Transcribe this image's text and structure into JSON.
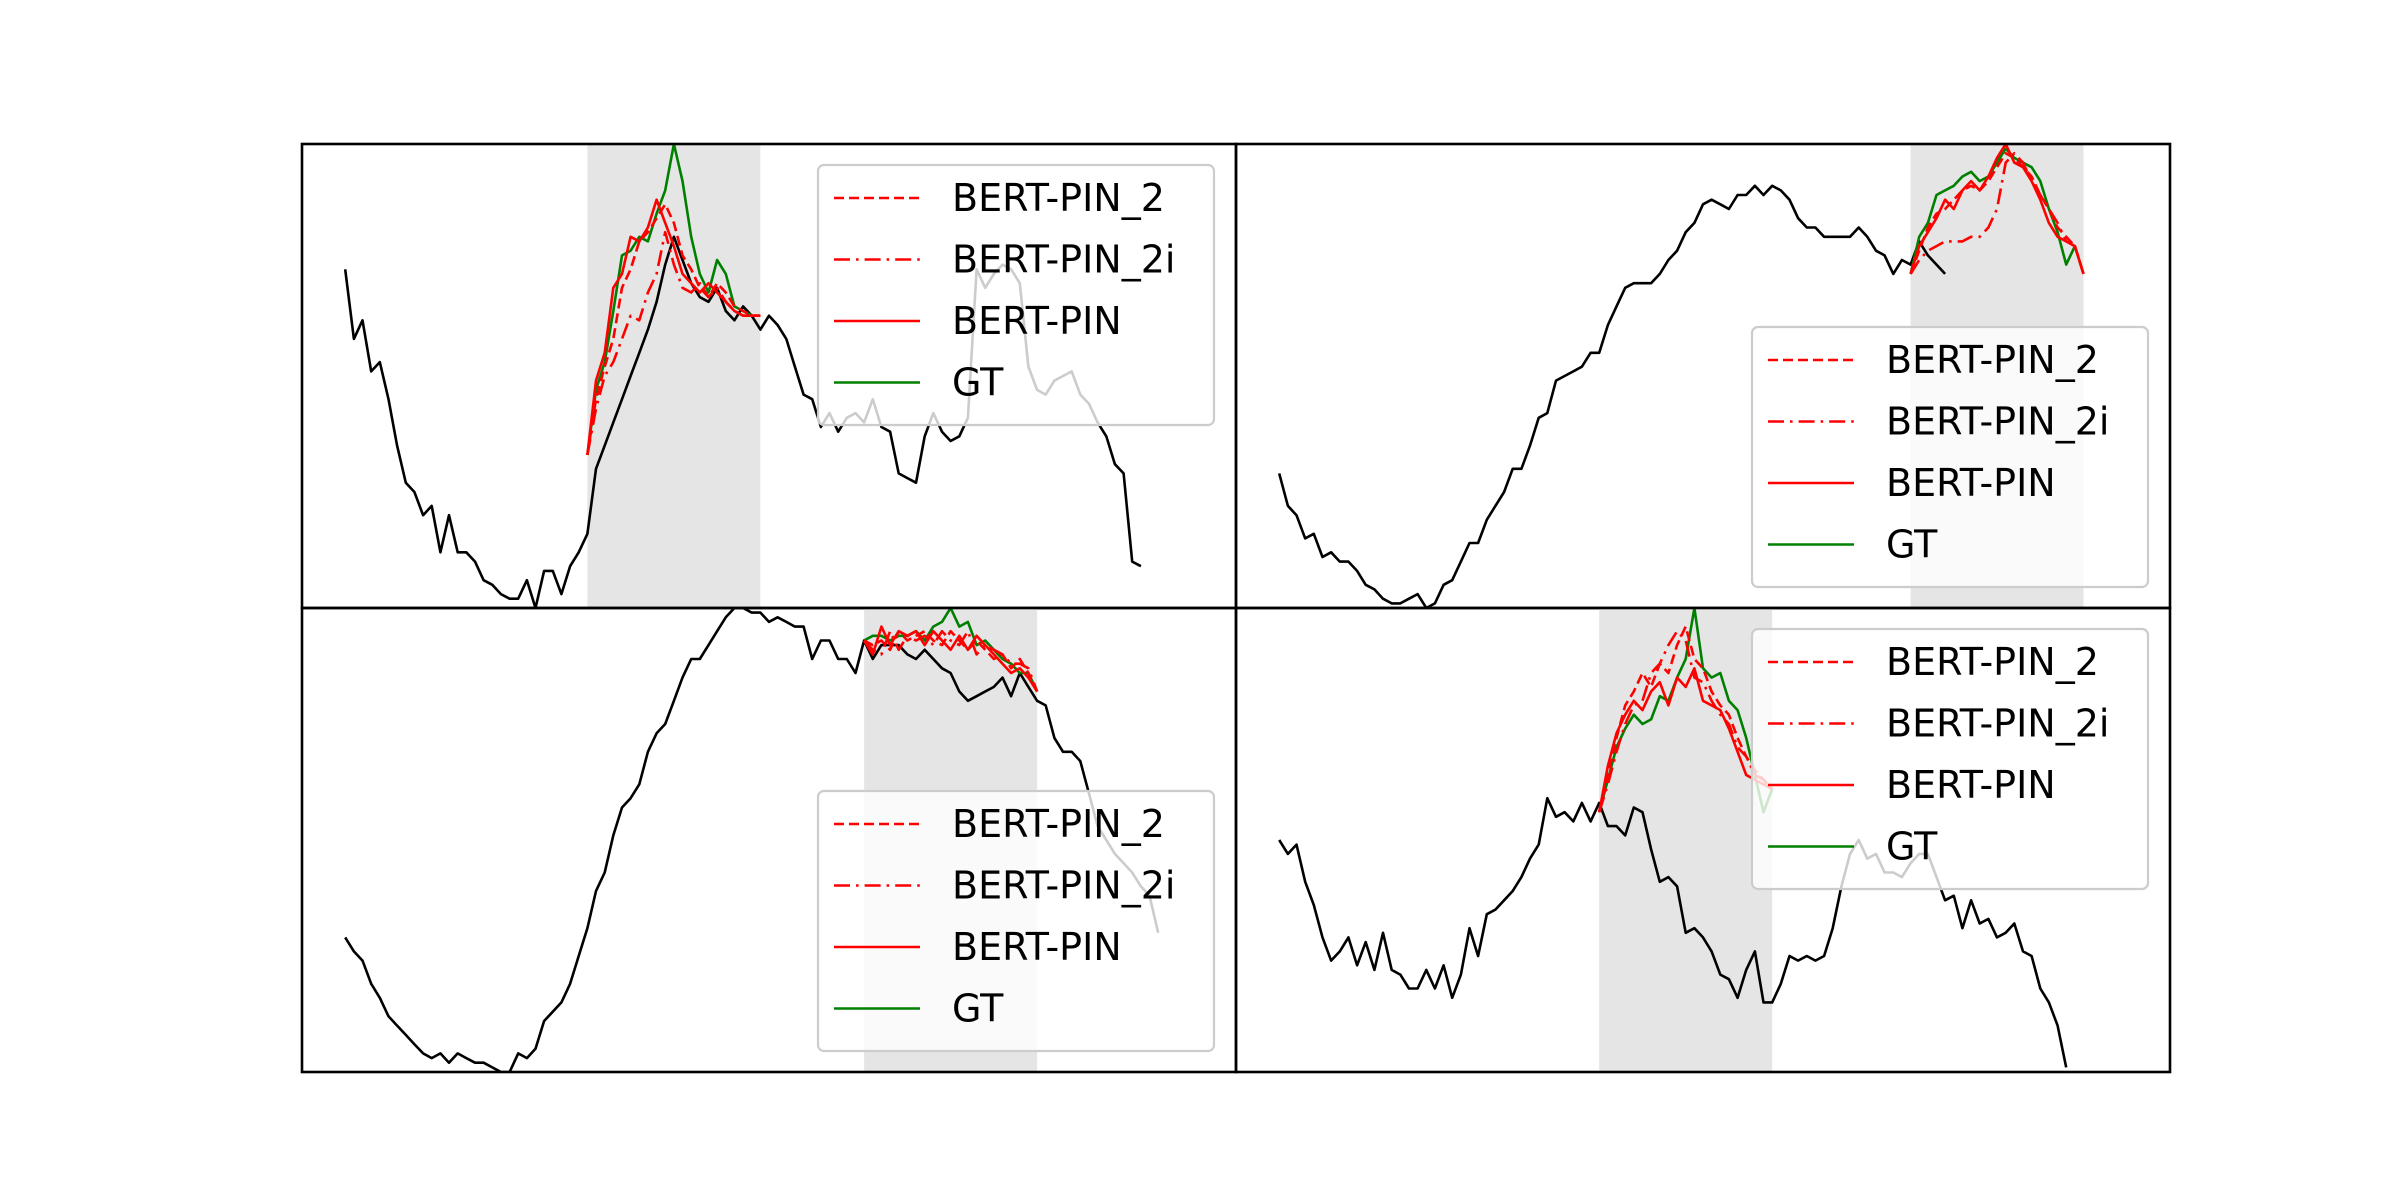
{
  "legend_labels": [
    "BERT-PIN_2",
    "BERT-PIN_2i",
    "BERT-PIN",
    "GT"
  ],
  "colors": {
    "prediction": "#ff0000",
    "ground_truth": "#008000",
    "context": "#000000",
    "masked_band": "#e5e5e5"
  },
  "chart_data": [
    {
      "type": "line",
      "panel": "top-left",
      "legend_position": "upper right",
      "x_range": [
        -2,
        106
      ],
      "y_range": [
        0,
        1
      ],
      "masked_region": [
        31,
        51
      ],
      "series": [
        {
          "name": "context",
          "x_start": 3,
          "values": [
            0.73,
            0.58,
            0.62,
            0.51,
            0.53,
            0.45,
            0.35,
            0.27,
            0.25,
            0.2,
            0.22,
            0.12,
            0.2,
            0.12,
            0.12,
            0.1,
            0.06,
            0.05,
            0.03,
            0.02,
            0.02,
            0.06,
            0.0,
            0.08,
            0.08,
            0.03,
            0.09,
            0.12,
            0.16,
            0.3,
            0.35,
            0.4,
            0.45,
            0.5,
            0.55,
            0.6,
            0.66,
            0.74,
            0.8,
            0.75,
            0.7,
            0.67,
            0.66,
            0.69,
            0.64,
            0.62,
            0.65,
            0.63,
            0.6,
            0.63,
            0.61,
            0.58,
            0.52,
            0.46,
            0.45,
            0.39,
            0.42,
            0.38,
            0.41,
            0.42,
            0.4,
            0.45,
            0.39,
            0.38,
            0.29,
            0.28,
            0.27,
            0.37,
            0.42,
            0.38,
            0.36,
            0.37,
            0.41,
            0.73,
            0.69,
            0.72,
            0.74,
            0.73,
            0.7,
            0.52,
            0.47,
            0.46,
            0.49,
            0.5,
            0.51,
            0.46,
            0.44,
            0.4,
            0.37,
            0.31,
            0.29,
            0.1,
            0.09
          ]
        },
        {
          "name": "GT",
          "x_start": 31,
          "values": [
            0.33,
            0.47,
            0.53,
            0.64,
            0.76,
            0.77,
            0.8,
            0.79,
            0.85,
            0.9,
            1.0,
            0.92,
            0.8,
            0.72,
            0.68,
            0.75,
            0.72,
            0.65,
            0.64,
            0.63,
            0.63
          ]
        },
        {
          "name": "BERT-PIN",
          "x_start": 31,
          "values": [
            0.33,
            0.49,
            0.55,
            0.69,
            0.72,
            0.8,
            0.79,
            0.82,
            0.88,
            0.83,
            0.78,
            0.72,
            0.7,
            0.68,
            0.7,
            0.68,
            0.66,
            0.64,
            0.63,
            0.63,
            0.63
          ]
        },
        {
          "name": "BERT-PIN_2i",
          "x_start": 31,
          "values": [
            0.33,
            0.43,
            0.5,
            0.53,
            0.58,
            0.63,
            0.62,
            0.68,
            0.72,
            0.81,
            0.74,
            0.69,
            0.68,
            0.7,
            0.67,
            0.69,
            0.66,
            0.64,
            0.63,
            0.63,
            0.63
          ]
        },
        {
          "name": "BERT-PIN_2",
          "x_start": 31,
          "values": [
            0.33,
            0.45,
            0.52,
            0.58,
            0.69,
            0.73,
            0.79,
            0.81,
            0.84,
            0.87,
            0.83,
            0.76,
            0.73,
            0.69,
            0.67,
            0.7,
            0.68,
            0.65,
            0.64,
            0.63,
            0.63
          ]
        }
      ]
    },
    {
      "type": "line",
      "panel": "top-right",
      "legend_position": "lower right",
      "x_range": [
        -2,
        106
      ],
      "y_range": [
        0,
        1
      ],
      "masked_region": [
        76,
        96
      ],
      "series": [
        {
          "name": "context",
          "x_start": 3,
          "values": [
            0.29,
            0.22,
            0.2,
            0.15,
            0.16,
            0.11,
            0.12,
            0.1,
            0.1,
            0.08,
            0.05,
            0.04,
            0.02,
            0.01,
            0.01,
            0.02,
            0.03,
            0.0,
            0.01,
            0.05,
            0.06,
            0.1,
            0.14,
            0.14,
            0.19,
            0.22,
            0.25,
            0.3,
            0.3,
            0.35,
            0.41,
            0.42,
            0.49,
            0.5,
            0.51,
            0.52,
            0.55,
            0.55,
            0.61,
            0.65,
            0.69,
            0.7,
            0.7,
            0.7,
            0.72,
            0.75,
            0.77,
            0.81,
            0.83,
            0.87,
            0.88,
            0.87,
            0.86,
            0.89,
            0.89,
            0.91,
            0.89,
            0.91,
            0.9,
            0.88,
            0.84,
            0.82,
            0.82,
            0.8,
            0.8,
            0.8,
            0.8,
            0.82,
            0.8,
            0.77,
            0.76,
            0.72,
            0.75,
            0.74,
            0.79,
            0.76,
            0.74,
            0.72
          ]
        },
        {
          "name": "GT",
          "x_start": 76,
          "values": [
            0.72,
            0.8,
            0.83,
            0.89,
            0.9,
            0.91,
            0.93,
            0.94,
            0.92,
            0.93,
            0.96,
            0.99,
            0.97,
            0.96,
            0.95,
            0.92,
            0.86,
            0.81,
            0.74,
            0.78,
            0.72
          ]
        },
        {
          "name": "BERT-PIN",
          "x_start": 76,
          "values": [
            0.72,
            0.78,
            0.81,
            0.84,
            0.88,
            0.86,
            0.9,
            0.92,
            0.9,
            0.93,
            0.97,
            1.0,
            0.96,
            0.95,
            0.92,
            0.88,
            0.83,
            0.8,
            0.79,
            0.78,
            0.72
          ]
        },
        {
          "name": "BERT-PIN_2i",
          "x_start": 76,
          "values": [
            0.72,
            0.75,
            0.77,
            0.78,
            0.79,
            0.79,
            0.79,
            0.8,
            0.8,
            0.82,
            0.86,
            0.96,
            0.98,
            0.96,
            0.92,
            0.89,
            0.86,
            0.83,
            0.79,
            0.78,
            0.72
          ]
        },
        {
          "name": "BERT-PIN_2",
          "x_start": 76,
          "values": [
            0.72,
            0.77,
            0.82,
            0.85,
            0.86,
            0.88,
            0.9,
            0.91,
            0.9,
            0.92,
            0.95,
            0.98,
            0.97,
            0.95,
            0.93,
            0.89,
            0.86,
            0.82,
            0.8,
            0.78,
            0.72
          ]
        }
      ]
    },
    {
      "type": "line",
      "panel": "bottom-left",
      "legend_position": "lower right",
      "x_range": [
        -2,
        106
      ],
      "y_range": [
        0,
        1
      ],
      "masked_region": [
        63,
        83
      ],
      "series": [
        {
          "name": "context",
          "x_start": 3,
          "values": [
            0.29,
            0.26,
            0.24,
            0.19,
            0.16,
            0.12,
            0.1,
            0.08,
            0.06,
            0.04,
            0.03,
            0.04,
            0.02,
            0.04,
            0.03,
            0.02,
            0.02,
            0.01,
            0.0,
            0.0,
            0.04,
            0.03,
            0.05,
            0.11,
            0.13,
            0.15,
            0.19,
            0.25,
            0.31,
            0.39,
            0.43,
            0.51,
            0.57,
            0.59,
            0.62,
            0.69,
            0.73,
            0.75,
            0.8,
            0.85,
            0.89,
            0.89,
            0.92,
            0.95,
            0.98,
            1.0,
            1.0,
            0.99,
            0.99,
            0.97,
            0.98,
            0.97,
            0.96,
            0.96,
            0.89,
            0.93,
            0.93,
            0.89,
            0.89,
            0.86,
            0.93,
            0.89,
            0.92,
            0.92,
            0.92,
            0.9,
            0.89,
            0.91,
            0.89,
            0.87,
            0.86,
            0.82,
            0.8,
            0.81,
            0.82,
            0.83,
            0.85,
            0.81,
            0.86,
            0.83,
            0.8,
            0.79,
            0.72,
            0.69,
            0.69,
            0.67,
            0.6,
            0.53,
            0.5,
            0.47,
            0.45,
            0.43,
            0.4,
            0.38,
            0.3
          ]
        },
        {
          "name": "GT",
          "x_start": 63,
          "values": [
            0.93,
            0.94,
            0.94,
            0.93,
            0.94,
            0.94,
            0.95,
            0.93,
            0.96,
            0.97,
            1.0,
            0.96,
            0.97,
            0.92,
            0.93,
            0.91,
            0.89,
            0.88,
            0.86,
            0.86,
            0.82
          ]
        },
        {
          "name": "BERT-PIN",
          "x_start": 63,
          "values": [
            0.93,
            0.9,
            0.96,
            0.92,
            0.95,
            0.94,
            0.95,
            0.92,
            0.95,
            0.93,
            0.91,
            0.94,
            0.91,
            0.94,
            0.92,
            0.9,
            0.88,
            0.86,
            0.87,
            0.85,
            0.82
          ]
        },
        {
          "name": "BERT-PIN_2i",
          "x_start": 63,
          "values": [
            0.93,
            0.91,
            0.9,
            0.95,
            0.91,
            0.94,
            0.93,
            0.94,
            0.92,
            0.95,
            0.93,
            0.92,
            0.95,
            0.9,
            0.92,
            0.91,
            0.9,
            0.88,
            0.88,
            0.87,
            0.82
          ]
        },
        {
          "name": "BERT-PIN_2",
          "x_start": 63,
          "values": [
            0.93,
            0.92,
            0.93,
            0.91,
            0.95,
            0.93,
            0.94,
            0.95,
            0.93,
            0.92,
            0.95,
            0.93,
            0.91,
            0.93,
            0.91,
            0.89,
            0.9,
            0.87,
            0.89,
            0.86,
            0.82
          ]
        }
      ]
    },
    {
      "type": "line",
      "panel": "bottom-right",
      "legend_position": "upper right",
      "x_range": [
        -2,
        106
      ],
      "y_range": [
        0,
        1
      ],
      "masked_region": [
        40,
        60
      ],
      "series": [
        {
          "name": "context",
          "x_start": 3,
          "values": [
            0.5,
            0.47,
            0.49,
            0.41,
            0.36,
            0.29,
            0.24,
            0.26,
            0.29,
            0.23,
            0.28,
            0.22,
            0.3,
            0.22,
            0.21,
            0.18,
            0.18,
            0.22,
            0.18,
            0.23,
            0.16,
            0.21,
            0.31,
            0.25,
            0.34,
            0.35,
            0.37,
            0.39,
            0.42,
            0.46,
            0.49,
            0.59,
            0.55,
            0.56,
            0.54,
            0.58,
            0.54,
            0.58,
            0.53,
            0.53,
            0.51,
            0.57,
            0.56,
            0.48,
            0.41,
            0.42,
            0.4,
            0.3,
            0.31,
            0.29,
            0.26,
            0.21,
            0.2,
            0.16,
            0.22,
            0.26,
            0.15,
            0.15,
            0.19,
            0.25,
            0.24,
            0.25,
            0.24,
            0.25,
            0.31,
            0.4,
            0.47,
            0.5,
            0.46,
            0.47,
            0.43,
            0.43,
            0.42,
            0.45,
            0.47,
            0.47,
            0.42,
            0.37,
            0.38,
            0.31,
            0.37,
            0.32,
            0.33,
            0.29,
            0.3,
            0.32,
            0.26,
            0.25,
            0.18,
            0.15,
            0.1,
            0.01
          ]
        },
        {
          "name": "GT",
          "x_start": 40,
          "values": [
            0.56,
            0.63,
            0.7,
            0.74,
            0.77,
            0.75,
            0.76,
            0.81,
            0.8,
            0.85,
            0.89,
            1.0,
            0.87,
            0.85,
            0.86,
            0.8,
            0.78,
            0.72,
            0.64,
            0.56,
            0.61
          ]
        },
        {
          "name": "BERT-PIN",
          "x_start": 40,
          "values": [
            0.56,
            0.66,
            0.73,
            0.77,
            0.8,
            0.78,
            0.82,
            0.84,
            0.79,
            0.85,
            0.83,
            0.87,
            0.8,
            0.79,
            0.78,
            0.74,
            0.69,
            0.64,
            0.63,
            0.62,
            0.61
          ]
        },
        {
          "name": "BERT-PIN_2i",
          "x_start": 40,
          "values": [
            0.56,
            0.62,
            0.69,
            0.75,
            0.79,
            0.8,
            0.86,
            0.88,
            0.92,
            0.95,
            0.93,
            0.85,
            0.84,
            0.8,
            0.77,
            0.75,
            0.7,
            0.68,
            0.64,
            0.63,
            0.61
          ]
        },
        {
          "name": "BERT-PIN_2",
          "x_start": 40,
          "values": [
            0.56,
            0.64,
            0.72,
            0.79,
            0.82,
            0.86,
            0.83,
            0.88,
            0.86,
            0.92,
            0.96,
            0.89,
            0.87,
            0.82,
            0.79,
            0.77,
            0.72,
            0.68,
            0.65,
            0.63,
            0.61
          ]
        }
      ]
    }
  ]
}
